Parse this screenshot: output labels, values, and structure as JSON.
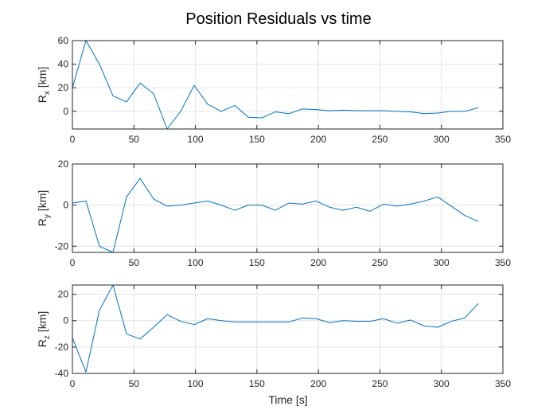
{
  "figure": {
    "title": "Position Residuals vs time",
    "xlabel": "Time [s]"
  },
  "chart_data": [
    {
      "type": "line",
      "ylabel_main": "R",
      "ylabel_sub": "x",
      "ylabel_unit": "[km]",
      "xlim": [
        0,
        350
      ],
      "ylim": [
        -15,
        60
      ],
      "xticks": [
        0,
        50,
        100,
        150,
        200,
        250,
        300,
        350
      ],
      "yticks": [
        0,
        20,
        40,
        60
      ],
      "grid": true,
      "series": [
        {
          "color": "#0072BD",
          "x": [
            0,
            11,
            22,
            33,
            44,
            55,
            66,
            77,
            88,
            99,
            110,
            121,
            132,
            143,
            154,
            165,
            176,
            187,
            198,
            209,
            220,
            231,
            242,
            253,
            264,
            275,
            286,
            297,
            308,
            319,
            330
          ],
          "y": [
            20,
            62,
            40,
            13,
            8,
            24,
            15,
            -16,
            0,
            22,
            6,
            0,
            5,
            -5,
            -5.5,
            -0.5,
            -2,
            2,
            1.5,
            0.5,
            1,
            0.5,
            0.5,
            0.5,
            0,
            -0.5,
            -2,
            -1.5,
            0,
            0,
            3
          ]
        }
      ]
    },
    {
      "type": "line",
      "ylabel_main": "R",
      "ylabel_sub": "y",
      "ylabel_unit": "[km]",
      "xlim": [
        0,
        350
      ],
      "ylim": [
        -23,
        20
      ],
      "xticks": [
        0,
        50,
        100,
        150,
        200,
        250,
        300,
        350
      ],
      "yticks": [
        -20,
        0,
        20
      ],
      "grid": true,
      "series": [
        {
          "color": "#0072BD",
          "x": [
            0,
            11,
            22,
            33,
            44,
            55,
            66,
            77,
            88,
            99,
            110,
            121,
            132,
            143,
            154,
            165,
            176,
            187,
            198,
            209,
            220,
            231,
            242,
            253,
            264,
            275,
            286,
            297,
            308,
            319,
            330
          ],
          "y": [
            1,
            2,
            -20,
            -23,
            4,
            13,
            3,
            -0.5,
            0,
            1,
            2,
            0,
            -2.5,
            0,
            0,
            -2.5,
            1,
            0.5,
            2,
            -1,
            -2.5,
            -1,
            -3,
            0.5,
            -0.5,
            0.5,
            2,
            4,
            -0.5,
            -5,
            -8
          ]
        }
      ]
    },
    {
      "type": "line",
      "ylabel_main": "R",
      "ylabel_sub": "z",
      "ylabel_unit": "[km]",
      "xlim": [
        0,
        350
      ],
      "ylim": [
        -40,
        27
      ],
      "xticks": [
        0,
        50,
        100,
        150,
        200,
        250,
        300,
        350
      ],
      "yticks": [
        -40,
        -20,
        0,
        20
      ],
      "grid": true,
      "series": [
        {
          "color": "#0072BD",
          "x": [
            0,
            11,
            22,
            33,
            44,
            55,
            66,
            77,
            88,
            99,
            110,
            121,
            132,
            143,
            154,
            165,
            176,
            187,
            198,
            209,
            220,
            231,
            242,
            253,
            264,
            275,
            286,
            297,
            308,
            319,
            330
          ],
          "y": [
            -13,
            -39,
            8,
            27,
            -10,
            -14,
            -5,
            4.5,
            -0.5,
            -3,
            1.5,
            0,
            -1,
            -1,
            -1,
            -1,
            -1,
            2,
            1.5,
            -1.5,
            0,
            -0.5,
            -0.5,
            1.5,
            -2,
            0.5,
            -4,
            -5,
            -0.5,
            2,
            13
          ]
        }
      ]
    }
  ]
}
